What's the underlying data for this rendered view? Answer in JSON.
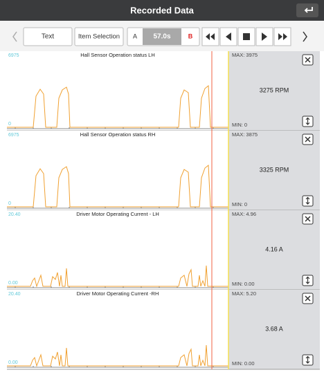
{
  "header": {
    "title": "Recorded Data"
  },
  "toolbar": {
    "text_button": "Text",
    "item_button": "Item Selection",
    "marker_a": "A",
    "time": "57.0s",
    "marker_b": "B"
  },
  "panels": [
    {
      "title": "Hall Sensor Operation status LH",
      "axis_top": "6975",
      "axis_bottom": "0",
      "max": "MAX: 3975",
      "value": "3275 RPM",
      "min": "MIN: 0"
    },
    {
      "title": "Hall Sensor Operation status RH",
      "axis_top": "6975",
      "axis_bottom": "0",
      "max": "MAX: 3875",
      "value": "3325 RPM",
      "min": "MIN: 0"
    },
    {
      "title": "Driver Motor Operating Current - LH",
      "axis_top": "20.40",
      "axis_bottom": "0.00",
      "max": "MAX: 4.96",
      "value": "4.16 A",
      "min": "MIN: 0.00"
    },
    {
      "title": "Driver Motor Operating Current -RH",
      "axis_top": "20.40",
      "axis_bottom": "0.00",
      "max": "MAX: 5.20",
      "value": "3.68 A",
      "min": "MIN: 0.00"
    }
  ]
}
